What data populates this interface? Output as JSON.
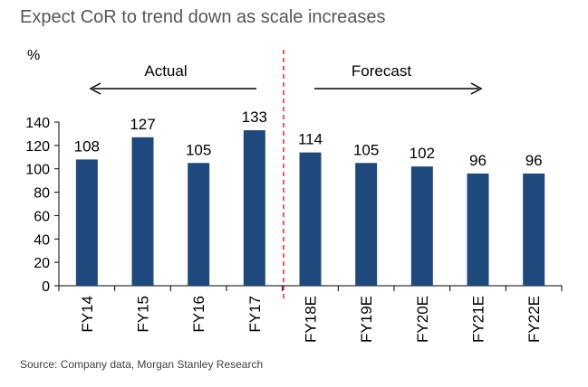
{
  "title": "Expect CoR to trend down as scale increases",
  "source": "Source: Company data, Morgan Stanley Research",
  "colors": {
    "bar": "#1F497D",
    "divider": "#E0272D",
    "arrow": "#000000",
    "text": "#000000"
  },
  "chart_data": {
    "type": "bar",
    "ylabel": "%",
    "ylim": [
      0,
      140
    ],
    "yticks": [
      0,
      20,
      40,
      60,
      80,
      100,
      120,
      140
    ],
    "categories": [
      "FY14",
      "FY15",
      "FY16",
      "FY17",
      "FY18E",
      "FY19E",
      "FY20E",
      "FY21E",
      "FY22E"
    ],
    "values": [
      108,
      127,
      105,
      133,
      114,
      105,
      102,
      96,
      96
    ],
    "data_labels": [
      "108",
      "127",
      "105",
      "133",
      "114",
      "105",
      "102",
      "96",
      "96"
    ],
    "regions": [
      {
        "label": "Actual",
        "direction": "left"
      },
      {
        "label": "Forecast",
        "direction": "right"
      }
    ],
    "grid": false,
    "legend": "none"
  }
}
